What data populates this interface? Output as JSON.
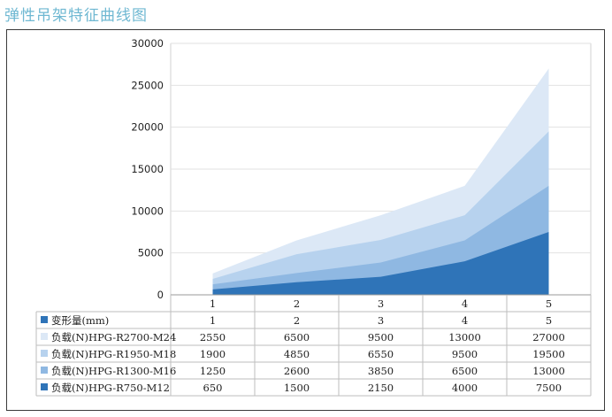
{
  "page": {
    "title": "弹性吊架特征曲线图"
  },
  "colors": {
    "title": "#6fb8d2",
    "series": [
      "#dce8f6",
      "#b7d2ee",
      "#8fb8e2",
      "#2f74b8"
    ]
  },
  "chart_data": {
    "type": "area",
    "title": "",
    "x": [
      "1",
      "2",
      "3",
      "4",
      "5"
    ],
    "ylim": [
      0,
      30000
    ],
    "yticks": [
      "0",
      "5000",
      "10000",
      "15000",
      "20000",
      "25000",
      "30000"
    ],
    "grid": true,
    "table_header": {
      "label": "变形量(mm)",
      "values": [
        "1",
        "2",
        "3",
        "4",
        "5"
      ]
    },
    "series": [
      {
        "name": "负载(N)HPG-R2700-M24",
        "values": [
          2550,
          6500,
          9500,
          13000,
          27000
        ],
        "color": "#dce8f6"
      },
      {
        "name": "负载(N)HPG-R1950-M18",
        "values": [
          1900,
          4850,
          6550,
          9500,
          19500
        ],
        "color": "#b7d2ee"
      },
      {
        "name": "负载(N)HPG-R1300-M16",
        "values": [
          1250,
          2600,
          3850,
          6500,
          13000
        ],
        "color": "#8fb8e2"
      },
      {
        "name": "负载(N)HPG-R750-M12",
        "values": [
          650,
          1500,
          2150,
          4000,
          7500
        ],
        "color": "#2f74b8"
      }
    ]
  }
}
